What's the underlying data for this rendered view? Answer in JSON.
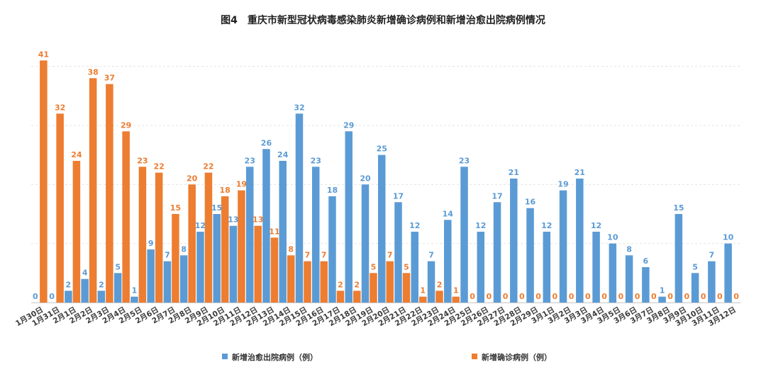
{
  "chart_data": {
    "type": "bar",
    "title": "图4　重庆市新型冠状病毒感染肺炎新增确诊病例和新增治愈出院病例情况",
    "xlabel": "",
    "ylabel": "",
    "ylim": [
      0,
      45
    ],
    "grid": true,
    "legend_position": "bottom",
    "categories": [
      "1月30日",
      "1月31日",
      "2月1日",
      "2月2日",
      "2月3日",
      "2月4日",
      "2月5日",
      "2月6日",
      "2月7日",
      "2月8日",
      "2月9日",
      "2月10日",
      "2月11日",
      "2月12日",
      "2月13日",
      "2月14日",
      "2月15日",
      "2月16日",
      "2月17日",
      "2月18日",
      "2月19日",
      "2月20日",
      "2月21日",
      "2月22日",
      "2月23日",
      "2月24日",
      "2月25日",
      "2月26日",
      "2月27日",
      "2月28日",
      "2月29日",
      "3月1日",
      "3月2日",
      "3月3日",
      "3月4日",
      "3月5日",
      "3月6日",
      "3月7日",
      "3月8日",
      "3月9日",
      "3月10日",
      "3月11日",
      "3月12日"
    ],
    "series": [
      {
        "name": "新增治愈出院病例（例）",
        "color": "#5b9bd5",
        "label_color": "#5b9bd5",
        "values": [
          0,
          0,
          2,
          4,
          2,
          5,
          1,
          9,
          7,
          8,
          12,
          15,
          13,
          23,
          26,
          24,
          32,
          23,
          18,
          29,
          20,
          25,
          17,
          12,
          7,
          14,
          23,
          12,
          17,
          21,
          16,
          12,
          19,
          21,
          12,
          10,
          8,
          6,
          1,
          15,
          5,
          7,
          10
        ]
      },
      {
        "name": "新增确诊病例（例）",
        "color": "#ed7d31",
        "label_color": "#ed7d31",
        "values": [
          41,
          32,
          24,
          38,
          37,
          29,
          23,
          22,
          15,
          20,
          22,
          18,
          19,
          13,
          11,
          8,
          7,
          7,
          2,
          2,
          5,
          7,
          5,
          1,
          2,
          1,
          0,
          0,
          0,
          0,
          0,
          0,
          0,
          0,
          0,
          0,
          0,
          0,
          0,
          0,
          0,
          0,
          0
        ]
      }
    ]
  }
}
